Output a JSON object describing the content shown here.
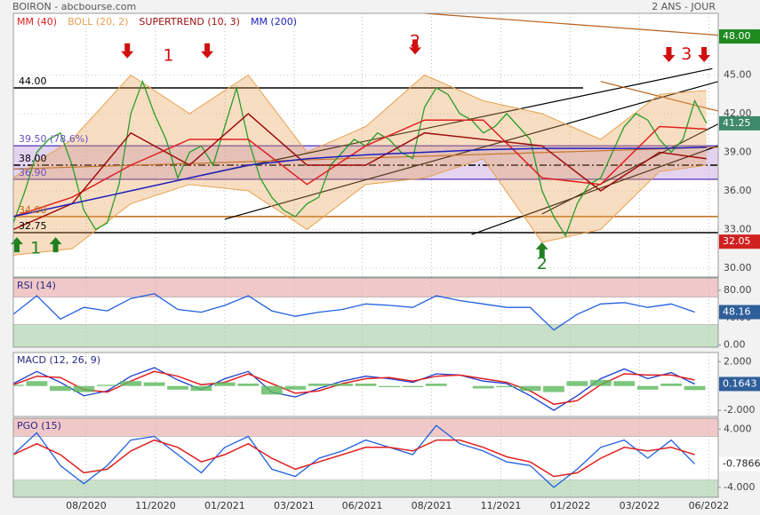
{
  "header": {
    "title": "BOIRON - abcbourse.com",
    "period": "2 ANS - JOUR"
  },
  "chart_data": [
    {
      "type": "line",
      "grid": true,
      "xlim": [
        0,
        60
      ],
      "ylim": [
        29.3,
        49.8
      ],
      "yticks": [
        {
          "value": 30,
          "label": "30.00"
        },
        {
          "value": 33,
          "label": "33.00"
        },
        {
          "value": 36,
          "label": "36.00"
        },
        {
          "value": 39,
          "label": "39.00"
        },
        {
          "value": 42,
          "label": "42.00"
        },
        {
          "value": 45,
          "label": "45.00"
        }
      ],
      "x": [
        0,
        1,
        2,
        3,
        4,
        5,
        6,
        7,
        8,
        9,
        10,
        11,
        12,
        13,
        14,
        15,
        16,
        17,
        18,
        19,
        20,
        21,
        22,
        23,
        24,
        25,
        26,
        27,
        28,
        29,
        30,
        31,
        32,
        33,
        34,
        35,
        36,
        37,
        38,
        39,
        40,
        41,
        42,
        43,
        44,
        45,
        46,
        47,
        48,
        49,
        50,
        51,
        52,
        53,
        54,
        55,
        56,
        57,
        58,
        59
      ],
      "bands": [
        {
          "from": 36.9,
          "to": 39.5,
          "color": "#dcc8ec"
        }
      ],
      "levels": [
        {
          "value": 44,
          "label": "44.00",
          "color": "#000000",
          "xmax": 48.5
        },
        {
          "value": 38,
          "label": "38.00",
          "color": "#000000",
          "dash": true
        },
        {
          "value": 36.9,
          "label": "36.90",
          "color": "#6a50c0"
        },
        {
          "value": 39.5,
          "label": "39.50 (78.6%)",
          "color": "#6a50c0"
        },
        {
          "value": 34,
          "label": "34.00",
          "color": "#c06a10"
        },
        {
          "value": 32.75,
          "label": "32.75",
          "color": "#000000"
        }
      ],
      "series": [
        {
          "color": "#2a9d2a",
          "badge_color": "#3d8a6a",
          "values": [
            33.5,
            36,
            39,
            40,
            40.5,
            38,
            34.5,
            33,
            33.5,
            36.5,
            42,
            44.5,
            42,
            40,
            37,
            39,
            39.5,
            38,
            41,
            44,
            40,
            37,
            35.5,
            34.5,
            34,
            35,
            35.5,
            38,
            39,
            40,
            39.5,
            40.5,
            40,
            39,
            38.5,
            42.5,
            44,
            43.5,
            42,
            41.5,
            40.5,
            41,
            42,
            41,
            40,
            36,
            34,
            32.5,
            35,
            36.5,
            37,
            39,
            41,
            42,
            41.5,
            40,
            39,
            40,
            43,
            41.25
          ]
        },
        {
          "name": "MM (40)",
          "color": "#e02020",
          "x": [
            0,
            5,
            10,
            15,
            20,
            25,
            30,
            35,
            40,
            45,
            50,
            55,
            59
          ],
          "values": [
            34,
            35.5,
            38,
            40,
            40,
            36.5,
            39.5,
            41.5,
            41.5,
            37,
            36.5,
            41,
            40.8
          ]
        },
        {
          "name": "BOLL (20, 2)",
          "color": "#e8a050",
          "style": "band",
          "x": [
            0,
            5,
            10,
            15,
            20,
            25,
            30,
            35,
            40,
            45,
            50,
            55,
            59
          ],
          "upper": [
            37,
            40,
            45,
            42,
            45,
            39,
            41,
            45,
            43,
            42,
            40,
            43.5,
            43.8
          ],
          "lower": [
            31,
            31.5,
            35,
            36.5,
            36,
            33,
            36.5,
            37,
            38.5,
            32,
            33,
            37.5,
            38
          ]
        },
        {
          "name": "SUPERTREND (10, 3)",
          "color": "#a01010",
          "x": [
            0,
            5,
            10,
            15,
            20,
            25,
            30,
            35,
            40,
            45,
            50,
            55,
            59
          ],
          "values": [
            33,
            35,
            40.5,
            38,
            42,
            38,
            38,
            40.5,
            40,
            39.5,
            36,
            39,
            38.5
          ]
        },
        {
          "name": "MM (200)",
          "color": "#2020c0",
          "x": [
            0,
            5,
            10,
            15,
            20,
            25,
            30,
            35,
            40,
            45,
            50,
            55,
            59
          ],
          "values": [
            34,
            35,
            36,
            37,
            38,
            38.5,
            38.8,
            39,
            39.2,
            39.3,
            39.3,
            39.3,
            39.4
          ]
        }
      ],
      "trendlines": [
        {
          "x": [
            16,
            59.5
          ],
          "y": [
            37.2,
            45.5
          ],
          "color": "#000000"
        },
        {
          "x": [
            18,
            60
          ],
          "y": [
            33.8,
            44.5
          ],
          "color": "#000000"
        },
        {
          "x": [
            39,
            60
          ],
          "y": [
            32.6,
            39.5
          ],
          "color": "#000000"
        },
        {
          "x": [
            45,
            60
          ],
          "y": [
            34.2,
            41.2
          ],
          "color": "#000000"
        },
        {
          "x": [
            35,
            60
          ],
          "y": [
            49.8,
            48.1
          ],
          "color": "#b8601a"
        },
        {
          "x": [
            0,
            60
          ],
          "y": [
            37.7,
            39.4
          ],
          "color": "#b8601a"
        },
        {
          "x": [
            50,
            60
          ],
          "y": [
            44.5,
            42.2
          ],
          "color": "#b8601a"
        }
      ],
      "arrows": [
        {
          "x": 9.7,
          "y": 46.3,
          "dir": "down"
        },
        {
          "x": 16.5,
          "y": 46.3,
          "dir": "down"
        },
        {
          "x": 34.2,
          "y": 46.6,
          "dir": "down"
        },
        {
          "x": 55.8,
          "y": 46,
          "dir": "down"
        },
        {
          "x": 58.8,
          "y": 46,
          "dir": "down"
        },
        {
          "x": 0.3,
          "y": 32.4,
          "dir": "up"
        },
        {
          "x": 3.6,
          "y": 32.4,
          "dir": "up"
        },
        {
          "x": 45,
          "y": 32,
          "dir": "up"
        }
      ],
      "annotations": [
        {
          "text": "1",
          "x": 13.2,
          "y": 46.5,
          "color": "#d01010"
        },
        {
          "text": "2",
          "x": 34.2,
          "y": 47.6,
          "color": "#d01010"
        },
        {
          "text": "3",
          "x": 57.3,
          "y": 46.6,
          "color": "#d01010"
        },
        {
          "text": "1",
          "x": 1.9,
          "y": 31.5,
          "color": "#208020"
        },
        {
          "text": "2",
          "x": 45,
          "y": 30.3,
          "color": "#208020"
        }
      ],
      "badges": [
        {
          "value": 48,
          "label": "48.00",
          "color": "#1f8a1f"
        },
        {
          "value": 32.05,
          "label": "32.05",
          "color": "#d02020"
        }
      ]
    },
    {
      "type": "line",
      "title": "RSI (14)",
      "xlim": [
        0,
        60
      ],
      "ylim": [
        -3,
        98
      ],
      "yticks": [
        {
          "value": 80,
          "label": "80.00"
        },
        {
          "value": 40,
          "label": "40.00"
        },
        {
          "value": 0,
          "label": "0.00"
        }
      ],
      "zones": [
        {
          "from": 70,
          "to": 98,
          "color": "#f0c8c8"
        },
        {
          "from": -3,
          "to": 30,
          "color": "#c8e0c8"
        }
      ],
      "x": [
        0,
        2,
        4,
        6,
        8,
        10,
        12,
        14,
        16,
        18,
        20,
        22,
        24,
        26,
        28,
        30,
        32,
        34,
        36,
        38,
        40,
        42,
        44,
        46,
        48,
        50,
        52,
        54,
        56,
        58
      ],
      "series": [
        {
          "color": "#2060e0",
          "badge_color": "#2f5f9a",
          "values": [
            45,
            72,
            38,
            55,
            50,
            68,
            75,
            52,
            48,
            58,
            72,
            50,
            42,
            48,
            52,
            60,
            58,
            55,
            72,
            65,
            60,
            55,
            55,
            22,
            45,
            60,
            62,
            55,
            60,
            48.16
          ]
        }
      ]
    },
    {
      "type": "line",
      "title": "MACD (12, 26, 9)",
      "xlim": [
        0,
        60
      ],
      "ylim": [
        -2.5,
        2.75
      ],
      "yticks": [
        {
          "value": 2,
          "label": "2.000"
        },
        {
          "value": -2,
          "label": "-2.000"
        }
      ],
      "x": [
        0,
        2,
        4,
        6,
        8,
        10,
        12,
        14,
        16,
        18,
        20,
        22,
        24,
        26,
        28,
        30,
        32,
        34,
        36,
        38,
        40,
        42,
        44,
        46,
        48,
        50,
        52,
        54,
        56,
        58
      ],
      "series": [
        {
          "color": "#1a3fd0",
          "badge_color": "#2f5f9a",
          "values": [
            0.2,
            1.2,
            0.3,
            -0.8,
            -0.4,
            0.8,
            1.5,
            0.5,
            -0.3,
            0.6,
            1.2,
            -0.5,
            -0.9,
            -0.2,
            0.4,
            0.8,
            0.6,
            0.3,
            1.0,
            0.9,
            0.4,
            0.2,
            -0.8,
            -2.0,
            -0.8,
            0.6,
            1.4,
            0.6,
            1.1,
            0.1643
          ]
        },
        {
          "color": "#e02020",
          "values": [
            0.1,
            0.8,
            0.7,
            -0.3,
            -0.5,
            0.4,
            1.2,
            0.8,
            0.1,
            0.3,
            1.0,
            0.2,
            -0.6,
            -0.4,
            0.2,
            0.6,
            0.7,
            0.4,
            0.8,
            0.9,
            0.6,
            0.3,
            -0.4,
            -1.5,
            -1.2,
            0.1,
            1.0,
            0.9,
            0.9,
            0.5
          ]
        },
        {
          "color": "#5cb85c",
          "style": "bar",
          "values": [
            0.1,
            0.4,
            -0.4,
            -0.5,
            0.1,
            0.4,
            0.3,
            -0.3,
            -0.4,
            0.3,
            0.2,
            -0.7,
            -0.3,
            0.2,
            0.2,
            0.2,
            -0.1,
            -0.1,
            0.2,
            0,
            -0.2,
            -0.1,
            -0.4,
            -0.5,
            0.4,
            0.5,
            0.4,
            -0.3,
            0.2,
            -0.3357
          ]
        }
      ]
    },
    {
      "type": "line",
      "title": "PGO (15)",
      "xlim": [
        0,
        60
      ],
      "ylim": [
        -5.35,
        5.5
      ],
      "yticks": [
        {
          "value": 4,
          "label": "4.000"
        },
        {
          "value": -4,
          "label": "-4.000"
        }
      ],
      "zones": [
        {
          "from": 3,
          "to": 5.5,
          "color": "#f0c8c8"
        },
        {
          "from": -5.35,
          "to": -3,
          "color": "#c8e0c8"
        }
      ],
      "xticks": [
        {
          "value": 6.2,
          "label": "08/2020"
        },
        {
          "value": 12.1,
          "label": "11/2020"
        },
        {
          "value": 18,
          "label": "01/2021"
        },
        {
          "value": 23.9,
          "label": "03/2021"
        },
        {
          "value": 29.7,
          "label": "06/2021"
        },
        {
          "value": 35.6,
          "label": "08/2021"
        },
        {
          "value": 41.5,
          "label": "11/2021"
        },
        {
          "value": 47.4,
          "label": "01/2022"
        },
        {
          "value": 53.3,
          "label": "03/2022"
        },
        {
          "value": 59.2,
          "label": "06/2022"
        }
      ],
      "x": [
        0,
        2,
        4,
        6,
        8,
        10,
        12,
        14,
        16,
        18,
        20,
        22,
        24,
        26,
        28,
        30,
        32,
        34,
        36,
        38,
        40,
        42,
        44,
        46,
        48,
        50,
        52,
        54,
        56,
        58
      ],
      "series": [
        {
          "color": "#2060e0",
          "badge_color": "#ffffff",
          "badge_text": "#222222",
          "values": [
            0.5,
            3.5,
            -1,
            -3.5,
            -1,
            2.5,
            3,
            0.5,
            -2,
            1.5,
            3,
            -1.5,
            -2.5,
            0,
            1,
            2.5,
            1.5,
            0.5,
            4.5,
            2,
            1,
            -0.5,
            -1,
            -4,
            -1.5,
            1.5,
            2.5,
            0,
            2.5,
            -0.7866
          ]
        },
        {
          "color": "#e02020",
          "values": [
            0.5,
            2,
            0.5,
            -2,
            -1.5,
            1,
            2.5,
            1.5,
            -0.5,
            0.5,
            2,
            0,
            -1.5,
            -0.5,
            0.5,
            1.5,
            1.5,
            1,
            2.5,
            2.5,
            1.5,
            0.2,
            -0.5,
            -2.5,
            -2,
            0,
            1.5,
            1,
            1.5,
            0.5
          ]
        }
      ]
    }
  ]
}
